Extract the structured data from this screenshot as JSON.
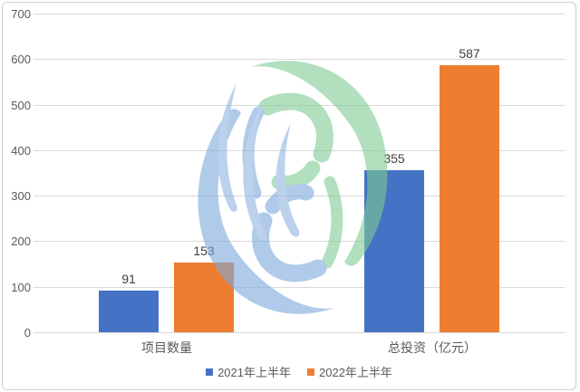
{
  "chart_data": {
    "type": "bar",
    "title": "",
    "categories": [
      "项目数量",
      "总投资（亿元）"
    ],
    "series": [
      {
        "name": "2021年上半年",
        "color": "#4473C5",
        "values": [
          91,
          355
        ]
      },
      {
        "name": "2022年上半年",
        "color": "#ED7D31",
        "values": [
          153,
          587
        ]
      }
    ],
    "ylim": [
      0,
      700
    ],
    "ytick_step": 100,
    "ytick_labels": [
      "0",
      "100",
      "200",
      "300",
      "400",
      "500",
      "600",
      "700"
    ],
    "grid": true,
    "legend_position": "bottom",
    "value_labels": [
      "91",
      "153",
      "355",
      "587"
    ]
  },
  "colors": {
    "gridline": "#d9d9d9",
    "axis_text": "#595959",
    "value_text": "#404040",
    "frame_border": "#cdcdcd",
    "background": "#ffffff",
    "watermark_green": "#7fcc93",
    "watermark_blue": "#7da8dc",
    "watermark_blue_light": "#8fb4e1"
  },
  "watermark": {
    "name": "swirl-logo-watermark"
  }
}
